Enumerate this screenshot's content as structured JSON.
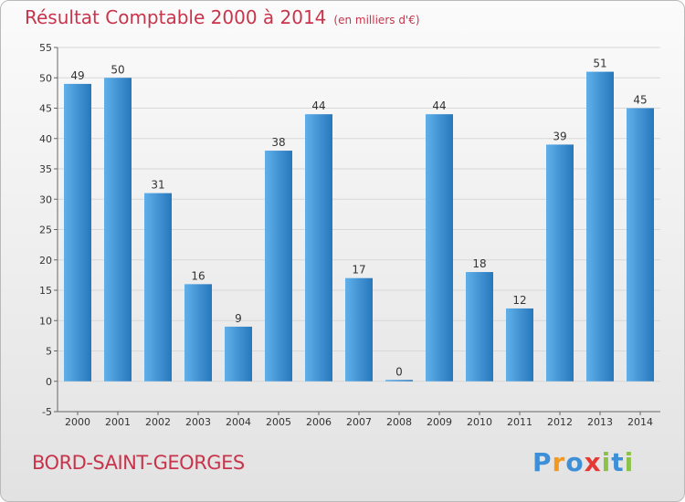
{
  "header": {
    "title": "Résultat Comptable 2000 à 2014",
    "subtitle": "(en milliers d'€)"
  },
  "footer": {
    "commune": "BORD-SAINT-GEORGES",
    "logo_letters": [
      "P",
      "r",
      "o",
      "x",
      "i",
      "t",
      "i"
    ]
  },
  "colors": {
    "title": "#c8344b",
    "bar_light": "#5fb0ea",
    "bar_dark": "#2777bd",
    "grid": "#d8d8d8",
    "logo": [
      "#3d8fd8",
      "#f39a1e",
      "#3d8fd8",
      "#e53935",
      "#8bc34a",
      "#3d8fd8",
      "#8bc34a"
    ]
  },
  "chart_data": {
    "type": "bar",
    "title": "Résultat Comptable 2000 à 2014",
    "subtitle": "(en milliers d'€)",
    "xlabel": "",
    "ylabel": "",
    "categories": [
      "2000",
      "2001",
      "2002",
      "2003",
      "2004",
      "2005",
      "2006",
      "2007",
      "2008",
      "2009",
      "2010",
      "2011",
      "2012",
      "2013",
      "2014"
    ],
    "values": [
      49,
      50,
      31,
      16,
      9,
      38,
      44,
      17,
      0,
      44,
      18,
      12,
      39,
      51,
      45
    ],
    "ylim": [
      -5,
      55
    ],
    "yticks": [
      -5,
      0,
      5,
      10,
      15,
      20,
      25,
      30,
      35,
      40,
      45,
      50,
      55
    ],
    "grid": true
  }
}
